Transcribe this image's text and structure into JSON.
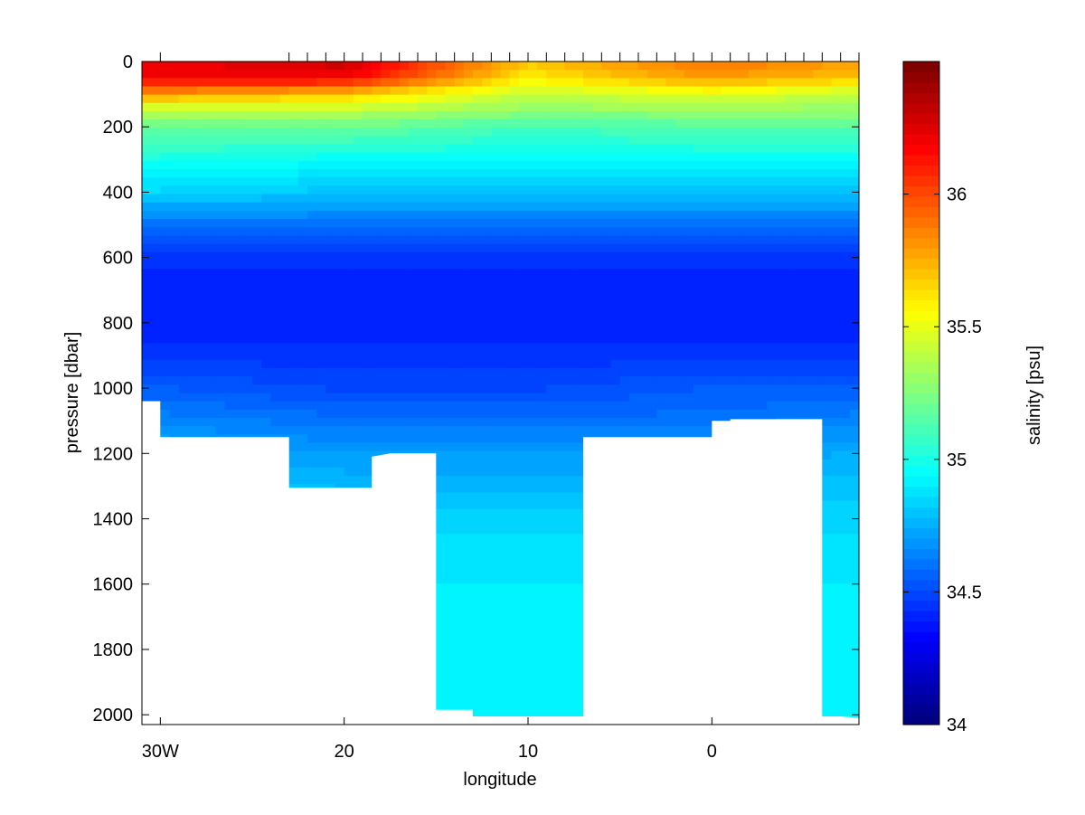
{
  "chart_data": {
    "type": "heatmap",
    "xlabel": "longitude",
    "ylabel": "pressure [dbar]",
    "colorbar_label": "salinity [psu]",
    "x_tick_labels": [
      "30W",
      "20",
      "10",
      "0"
    ],
    "x_tick_values": [
      -30,
      -20,
      -10,
      0
    ],
    "xlim": [
      -31,
      8
    ],
    "y_tick_labels": [
      "0",
      "200",
      "400",
      "600",
      "800",
      "1000",
      "1200",
      "1400",
      "1600",
      "1800",
      "2000"
    ],
    "y_tick_values": [
      0,
      200,
      400,
      600,
      800,
      1000,
      1200,
      1400,
      1600,
      1800,
      2000
    ],
    "ylim": [
      0,
      2030
    ],
    "y_reversed": true,
    "colorbar_ticks": [
      "34",
      "34.5",
      "35",
      "35.5",
      "36"
    ],
    "colorbar_tick_values": [
      34,
      34.5,
      35,
      35.5,
      36
    ],
    "clim": [
      34,
      36.5
    ],
    "colormap": "jet",
    "station_longitudes": [
      -30,
      -23,
      -22,
      -21,
      -20,
      -19,
      -18,
      -17,
      -16,
      -15,
      -14,
      -13,
      -12,
      -11,
      -10,
      -9,
      -8,
      -7,
      -6,
      -5,
      -4,
      -3,
      -2,
      -1,
      0,
      1,
      2,
      3,
      4,
      5,
      6,
      7,
      8
    ],
    "bottom_depth": {
      "longitude": [
        -31,
        -30,
        -30,
        -23,
        -23,
        -22,
        -22,
        -18.5,
        -18.5,
        -17.5,
        -17.5,
        -15,
        -15,
        -13,
        -13,
        -7,
        -7,
        0,
        0,
        1,
        1,
        6,
        6,
        7,
        8
      ],
      "pressure": [
        1040,
        1040,
        1150,
        1150,
        1305,
        1305,
        1305,
        1305,
        1210,
        1200,
        1200,
        1200,
        1985,
        1985,
        2005,
        2005,
        1150,
        1150,
        1100,
        1100,
        1095,
        1095,
        2005,
        2005,
        2010
      ]
    },
    "salinity_section": {
      "pressure_levels": [
        0,
        50,
        100,
        150,
        200,
        300,
        400,
        500,
        600,
        700,
        800,
        900,
        1000,
        1100,
        1200,
        1400,
        1600,
        1800,
        2000
      ],
      "longitudes": [
        -30,
        -20,
        -10,
        0,
        8
      ],
      "values": [
        [
          36.2,
          36.3,
          35.7,
          35.9,
          35.8
        ],
        [
          36.2,
          36.2,
          35.6,
          35.8,
          35.7
        ],
        [
          35.8,
          35.7,
          35.4,
          35.5,
          35.4
        ],
        [
          35.4,
          35.4,
          35.3,
          35.3,
          35.3
        ],
        [
          35.2,
          35.2,
          35.1,
          35.15,
          35.15
        ],
        [
          35.0,
          34.95,
          34.95,
          34.95,
          34.95
        ],
        [
          34.85,
          34.8,
          34.8,
          34.8,
          34.8
        ],
        [
          34.6,
          34.6,
          34.6,
          34.6,
          34.6
        ],
        [
          34.45,
          34.45,
          34.45,
          34.45,
          34.45
        ],
        [
          34.4,
          34.4,
          34.4,
          34.4,
          34.4
        ],
        [
          34.4,
          34.4,
          34.4,
          34.4,
          34.4
        ],
        [
          34.45,
          34.45,
          34.45,
          34.45,
          34.45
        ],
        [
          34.55,
          34.5,
          34.5,
          34.55,
          34.55
        ],
        [
          34.65,
          34.6,
          34.6,
          34.6,
          34.65
        ],
        [
          34.75,
          34.7,
          34.7,
          34.7,
          34.75
        ],
        [
          34.85,
          34.85,
          34.85,
          34.85,
          34.85
        ],
        [
          34.9,
          34.9,
          34.9,
          34.9,
          34.9
        ],
        [
          34.9,
          34.9,
          34.92,
          34.9,
          34.9
        ],
        [
          34.9,
          34.9,
          34.92,
          34.9,
          34.9
        ]
      ]
    },
    "grid": false
  }
}
